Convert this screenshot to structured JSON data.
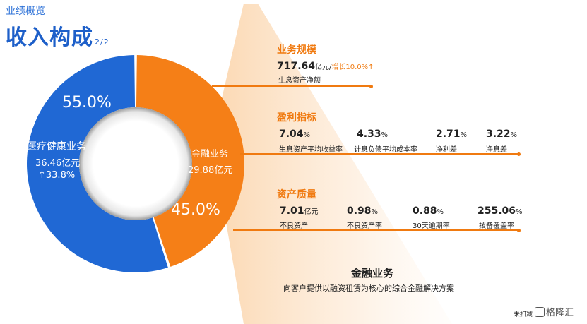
{
  "header": {
    "section": "业绩概览",
    "title": "收入构成",
    "page": "2/2"
  },
  "donut": {
    "medical": {
      "pct": "55.0%",
      "name": "医疗健康业务",
      "amount": "36.46亿元",
      "growth": "↑33.8%",
      "share": 55.0,
      "color": "#2068d4"
    },
    "finance": {
      "pct": "45.0%",
      "name": "金融业务",
      "amount": "29.88亿元",
      "share": 45.0,
      "color": "#f57f17"
    }
  },
  "scale": {
    "title": "业务规模",
    "value": "717.64",
    "unit": "亿元/",
    "growth": "增长10.0%↑",
    "label": "生息资产净额"
  },
  "profit": {
    "title": "盈利指标",
    "items": [
      {
        "value": "7.04",
        "unit": "%",
        "label": "生息资产平均收益率"
      },
      {
        "value": "4.33",
        "unit": "%",
        "label": "计息负债平均成本率"
      },
      {
        "value": "2.71",
        "unit": "%",
        "label": "净利差"
      },
      {
        "value": "3.22",
        "unit": "%",
        "label": "净息差"
      }
    ]
  },
  "quality": {
    "title": "资产质量",
    "items": [
      {
        "value": "7.01",
        "unit": "亿元",
        "label": "不良资产"
      },
      {
        "value": "0.98",
        "unit": "%",
        "label": "不良资产率"
      },
      {
        "value": "0.88",
        "unit": "%",
        "label": "30天逾期率"
      },
      {
        "value": "255.06",
        "unit": "%",
        "label": "拨备覆盖率"
      }
    ]
  },
  "finance_desc": {
    "title": "金融业务",
    "desc": "向客户提供以融资租赁为核心的综合金融解决方案"
  },
  "footer": {
    "note": "未扣减",
    "logo_icon": "gelonghui-logo-icon",
    "logo_text": "格隆汇"
  }
}
